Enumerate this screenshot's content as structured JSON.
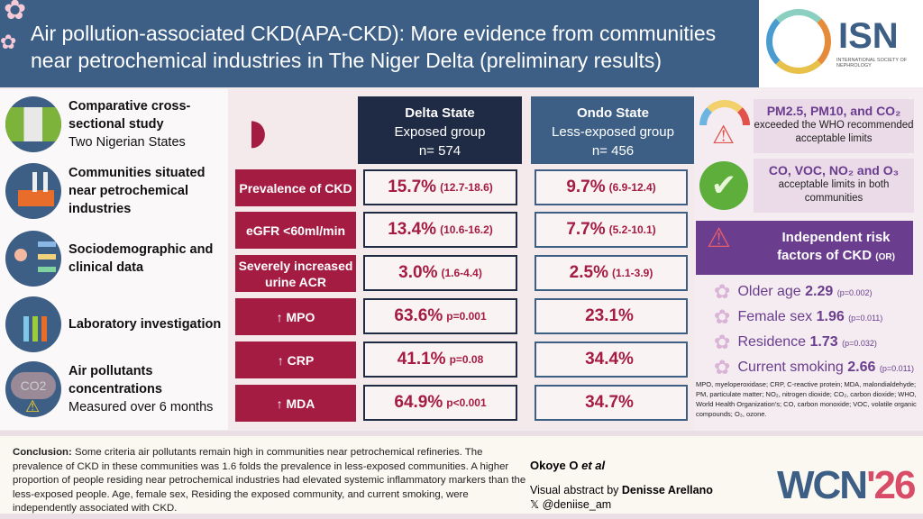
{
  "header": {
    "title": "Air pollution-associated CKD(APA-CKD): More evidence from communities near petrochemical industries in The Niger Delta (preliminary results)",
    "logo_text": "ISN",
    "logo_subtext": "INTERNATIONAL SOCIETY OF NEPHROLOGY"
  },
  "methods": [
    {
      "icon": "nigeria-flag-icon",
      "bold": "Comparative cross-sectional study",
      "text": "Two Nigerian States"
    },
    {
      "icon": "factory-icon",
      "bold": "Communities situated near petrochemical industries",
      "text": ""
    },
    {
      "icon": "patient-data-icon",
      "bold": "Sociodemographic and clinical data",
      "text": ""
    },
    {
      "icon": "laboratory-icon",
      "bold": "Laboratory investigation",
      "text": ""
    },
    {
      "icon": "co2-cloud-icon",
      "bold": "Air pollutants concentrations",
      "text": "Measured over 6 months",
      "icon_text": "CO2"
    }
  ],
  "table": {
    "delta": {
      "title": "Delta State",
      "sub": "Exposed group",
      "n": "n= 574"
    },
    "ondo": {
      "title": "Ondo State",
      "sub": "Less-exposed group",
      "n": "n= 456"
    },
    "rows": [
      {
        "label": "Prevalence of CKD",
        "delta": "15.7%",
        "delta_extra": "(12.7-18.6)",
        "ondo": "9.7%",
        "ondo_extra": "(6.9-12.4)"
      },
      {
        "label": "eGFR <60ml/min",
        "delta": "13.4%",
        "delta_extra": "(10.6-16.2)",
        "ondo": "7.7%",
        "ondo_extra": "(5.2-10.1)"
      },
      {
        "label": "Severely increased urine ACR",
        "delta": "3.0%",
        "delta_extra": "(1.6-4.4)",
        "ondo": "2.5%",
        "ondo_extra": "(1.1-3.9)"
      },
      {
        "label": "↑ MPO",
        "delta": "63.6%",
        "delta_extra": "p=0.001",
        "ondo": "23.1%",
        "ondo_extra": ""
      },
      {
        "label": "↑ CRP",
        "delta": "41.1%",
        "delta_extra": "p=0.08",
        "ondo": "34.4%",
        "ondo_extra": ""
      },
      {
        "label": "↑ MDA",
        "delta": "64.9%",
        "delta_extra": "p<0.001",
        "ondo": "34.7%",
        "ondo_extra": ""
      }
    ]
  },
  "pollutants": {
    "exceeded_head": "PM2.5, PM10, and CO₂",
    "exceeded_text": "exceeded the WHO recommended acceptable limits",
    "ok_head": "CO, VOC, NO₂ and O₃",
    "ok_text": "acceptable limits in both communities"
  },
  "risk": {
    "title": "Independent risk factors of CKD",
    "title_suffix": "(OR)",
    "items": [
      {
        "label": "Older age",
        "or": "2.29",
        "p": "(p=0.002)"
      },
      {
        "label": "Female sex",
        "or": "1.96",
        "p": "(p=0.011)"
      },
      {
        "label": "Residence",
        "or": "1.73",
        "p": "(p=0.032)"
      },
      {
        "label": "Current smoking",
        "or": "2.66",
        "p": "(p=0.011)"
      }
    ]
  },
  "footnote": "MPO, myeloperoxidase; CRP, C-reactive protein; MDA, malondialdehyde; PM, particulate matter; NO₂, nitrogen dioxide; CO₂, carbon dioxide; WHO, World Health Organization's; CO, carbon monoxide; VOC, volatile organic compounds; O₃, ozone.",
  "conclusion": {
    "label": "Conclusion:",
    "text": " Some criteria air pollutants remain high in communities near petrochemical refineries. The prevalence of CKD in these communities was 1.6 folds the prevalence in less-exposed communities. A higher proportion of people residing near petrochemical industries had elevated systemic inflammatory markers than the less-exposed people. Age, female sex, Residing the exposed community, and current smoking, were independently associated with CKD."
  },
  "credits": {
    "author": "Okoye O",
    "author_suffix": "et al",
    "va_prefix": "Visual abstract by ",
    "va_name": "Denisse Arellano",
    "handle": "@deniise_am",
    "x_icon": "𝕏"
  },
  "event": {
    "name": "WCN",
    "year": "'26"
  },
  "colors": {
    "header": "#3d5f86",
    "delta": "#1f2a44",
    "label": "#a51c43",
    "purple": "#6a3d8e"
  }
}
